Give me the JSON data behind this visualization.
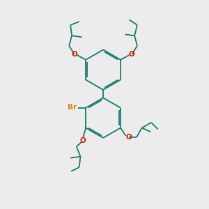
{
  "bg_color": "#ececec",
  "bond_color": "#1a7a6e",
  "oxygen_color": "#cc2200",
  "br_color": "#cc8800",
  "lw": 1.3,
  "dbo": 0.018,
  "figsize": [
    3.0,
    3.0
  ],
  "dpi": 100,
  "xlim": [
    -1.0,
    1.4
  ],
  "ylim": [
    -1.55,
    1.55
  ]
}
